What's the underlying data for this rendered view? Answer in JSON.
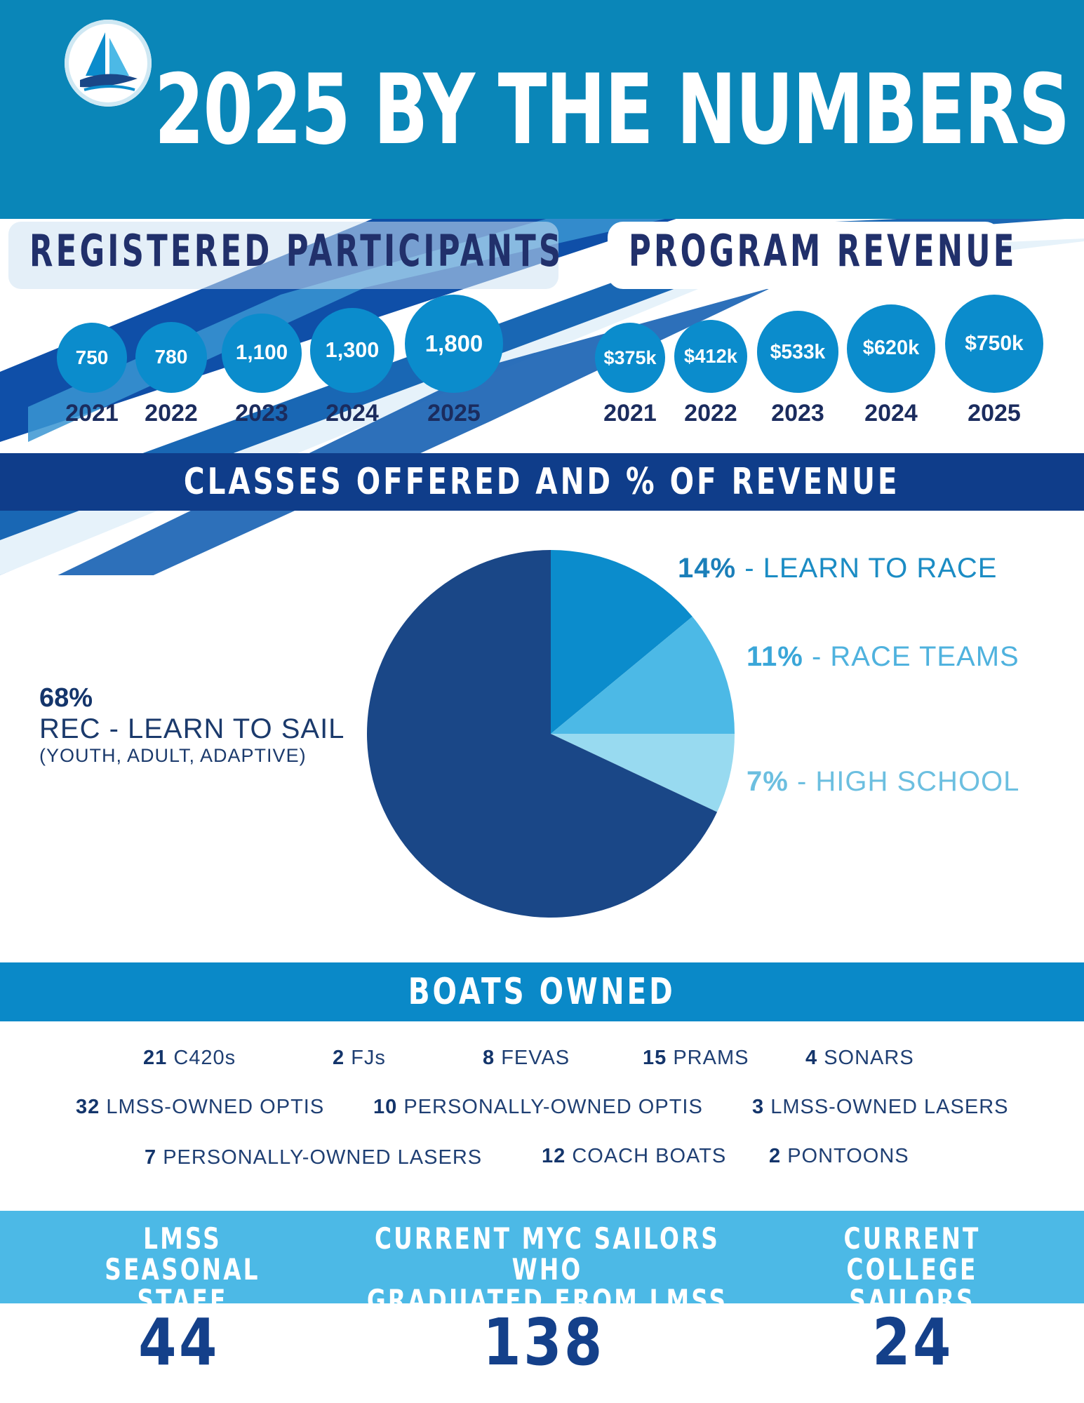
{
  "title": "2025 BY THE NUMBERS",
  "colors": {
    "header": "#0a86b8",
    "bubble": "#0b8ccc",
    "navy": "#1a4787",
    "band_navy": "#0f3d8a",
    "band_blue": "#0a89c8",
    "band_light": "#4cb9e6"
  },
  "logo": {
    "icon": "sailboat-logo-icon"
  },
  "participants": {
    "heading": "REGISTERED PARTICIPANTS",
    "items": [
      {
        "year": "2021",
        "value_label": "750"
      },
      {
        "year": "2022",
        "value_label": "780"
      },
      {
        "year": "2023",
        "value_label": "1,100"
      },
      {
        "year": "2024",
        "value_label": "1,300"
      },
      {
        "year": "2025",
        "value_label": "1,800"
      }
    ]
  },
  "revenue": {
    "heading": "PROGRAM REVENUE",
    "items": [
      {
        "year": "2021",
        "value_label": "$375k"
      },
      {
        "year": "2022",
        "value_label": "$412k"
      },
      {
        "year": "2023",
        "value_label": "$533k"
      },
      {
        "year": "2024",
        "value_label": "$620k"
      },
      {
        "year": "2025",
        "value_label": "$750k"
      }
    ]
  },
  "classes_heading": "CLASSES OFFERED AND % OF REVENUE",
  "chart_data": [
    {
      "type": "bar",
      "title": "REGISTERED PARTICIPANTS",
      "categories": [
        "2021",
        "2022",
        "2023",
        "2024",
        "2025"
      ],
      "values": [
        750,
        780,
        1100,
        1300,
        1800
      ]
    },
    {
      "type": "bar",
      "title": "PROGRAM REVENUE",
      "categories": [
        "2021",
        "2022",
        "2023",
        "2024",
        "2025"
      ],
      "values": [
        375,
        412,
        533,
        620,
        750
      ],
      "unit": "$k"
    },
    {
      "type": "pie",
      "title": "CLASSES OFFERED AND % OF REVENUE",
      "slices": [
        {
          "pct_label": "14%",
          "name": "- LEARN TO RACE",
          "value": 14,
          "color": "#0b8ccc",
          "label_color": "#1b8cc4",
          "pct_color": "#1b7fb9"
        },
        {
          "pct_label": "11%",
          "name": "- RACE TEAMS",
          "value": 11,
          "color": "#4cb9e6",
          "label_color": "#4fb2de",
          "pct_color": "#3aa6d8"
        },
        {
          "pct_label": "7%",
          "name": "- HIGH SCHOOL",
          "value": 7,
          "color": "#98daf0",
          "label_color": "#6cbfe0",
          "pct_color": "#6cbfe0"
        },
        {
          "pct_label": "68%",
          "name": "REC - LEARN TO SAIL",
          "sub": "(YOUTH, ADULT, ADAPTIVE)",
          "value": 68,
          "color": "#1a4787"
        }
      ]
    }
  ],
  "boats": {
    "heading": "BOATS OWNED",
    "rows": [
      [
        {
          "count": "21",
          "name": "C420s"
        },
        {
          "count": "2",
          "name": "FJs"
        },
        {
          "count": "8",
          "name": "FEVAS"
        },
        {
          "count": "15",
          "name": "PRAMS"
        },
        {
          "count": "4",
          "name": "SONARS"
        }
      ],
      [
        {
          "count": "32",
          "name": "LMSS-OWNED OPTIS"
        },
        {
          "count": "10",
          "name": "PERSONALLY-OWNED OPTIS"
        },
        {
          "count": "3",
          "name": "LMSS-OWNED LASERS"
        }
      ],
      [
        {
          "count": "7",
          "name": "PERSONALLY-OWNED LASERS"
        },
        {
          "count": "12",
          "name": "COACH BOATS"
        },
        {
          "count": "2",
          "name": "PONTOONS"
        }
      ]
    ]
  },
  "stats": [
    {
      "heading_1": "LMSS SEASONAL",
      "heading_2": "STAFF",
      "value": "44"
    },
    {
      "heading_1": "CURRENT MYC SAILORS WHO",
      "heading_2": "GRADUATED FROM LMSS",
      "value": "138"
    },
    {
      "heading_1": "CURRENT COLLEGE",
      "heading_2": "SAILORS",
      "value": "24"
    }
  ]
}
